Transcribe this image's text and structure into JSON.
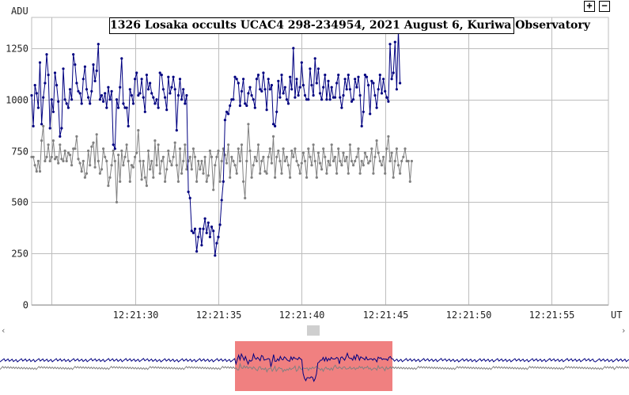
{
  "chart_data": {
    "type": "line",
    "title": "1326 Losaka occults UCAC4 298-234954, 2021 August 6, Kuriwa Observatory",
    "ylabel": "ADU",
    "xlabel": "UT",
    "ylim": [
      0,
      1400
    ],
    "xlim": [
      0,
      34.6
    ],
    "x_start_time": "12:21:25.0",
    "yticks": [
      {
        "value": 0,
        "label": "0"
      },
      {
        "value": 250,
        "label": "250"
      },
      {
        "value": 500,
        "label": "500"
      },
      {
        "value": 750,
        "label": "750"
      },
      {
        "value": 1000,
        "label": "1000"
      },
      {
        "value": 1250,
        "label": "1250"
      }
    ],
    "xticks": [
      {
        "value": 1.2,
        "label": ""
      },
      {
        "value": 6.2,
        "label": "12:21:30"
      },
      {
        "value": 11.2,
        "label": "12:21:35"
      },
      {
        "value": 16.2,
        "label": "12:21:40"
      },
      {
        "value": 21.2,
        "label": "12:21:45"
      },
      {
        "value": 26.2,
        "label": "12:21:50"
      },
      {
        "value": 31.2,
        "label": "12:21:55"
      }
    ],
    "grid": true,
    "series": [
      {
        "name": "",
        "color": "#000080",
        "x_step": 0.1,
        "values": [
          1020,
          870,
          1070,
          1030,
          960,
          1180,
          880,
          1010,
          1080,
          1220,
          1120,
          860,
          1000,
          940,
          1130,
          1070,
          990,
          820,
          860,
          1150,
          1000,
          980,
          960,
          1050,
          1000,
          1220,
          1170,
          1080,
          1040,
          1030,
          980,
          1100,
          1160,
          1050,
          1010,
          980,
          1040,
          1170,
          1090,
          1140,
          1270,
          1000,
          1020,
          990,
          1030,
          960,
          1060,
          1000,
          1040,
          780,
          760,
          1000,
          960,
          1060,
          1200,
          980,
          960,
          960,
          870,
          1050,
          1020,
          980,
          1100,
          1130,
          1020,
          1030,
          1100,
          1010,
          940,
          1120,
          1050,
          1080,
          1030,
          1010,
          980,
          1000,
          960,
          1130,
          1120,
          1050,
          1010,
          950,
          1110,
          1030,
          1060,
          1110,
          1050,
          850,
          1020,
          1100,
          1000,
          1050,
          980,
          1020,
          550,
          520,
          360,
          350,
          370,
          260,
          330,
          370,
          290,
          370,
          420,
          350,
          400,
          330,
          380,
          360,
          240,
          300,
          330,
          390,
          510,
          600,
          900,
          940,
          930,
          970,
          1000,
          1000,
          1110,
          1100,
          1080,
          970,
          1040,
          1100,
          980,
          970,
          1030,
          1060,
          1020,
          1000,
          960,
          1100,
          1120,
          1050,
          1040,
          1130,
          1050,
          950,
          1100,
          1050,
          1070,
          880,
          870,
          940,
          1090,
          1010,
          1120,
          1030,
          1060,
          1000,
          980,
          1110,
          1050,
          1250,
          1010,
          1100,
          1020,
          1060,
          1180,
          1070,
          1020,
          1000,
          1000,
          1150,
          1070,
          1020,
          1200,
          1080,
          1150,
          1030,
          1000,
          1060,
          1120,
          1000,
          1090,
          1000,
          1060,
          1010,
          1010,
          1080,
          1120,
          1010,
          960,
          1020,
          1100,
          1050,
          1120,
          1050,
          990,
          1000,
          1100,
          1060,
          1110,
          1020,
          870,
          940,
          1120,
          1110,
          1070,
          930,
          1090,
          1080,
          1020,
          960,
          1050,
          1120,
          1030,
          1100,
          1040,
          1010,
          990,
          1270,
          1100,
          1130,
          1280,
          1050,
          1340,
          1080
        ]
      },
      {
        "name": "",
        "color": "#808080",
        "x_step": 0.1,
        "values": [
          720,
          720,
          680,
          650,
          700,
          650,
          800,
          870,
          700,
          720,
          780,
          700,
          720,
          800,
          710,
          720,
          690,
          780,
          710,
          700,
          750,
          700,
          740,
          730,
          680,
          760,
          760,
          820,
          710,
          690,
          650,
          700,
          620,
          640,
          750,
          680,
          770,
          790,
          670,
          830,
          700,
          640,
          660,
          760,
          720,
          700,
          580,
          620,
          680,
          750,
          700,
          500,
          730,
          600,
          750,
          680,
          720,
          780,
          700,
          600,
          680,
          670,
          720,
          740,
          850,
          700,
          610,
          700,
          620,
          580,
          750,
          660,
          700,
          620,
          800,
          680,
          780,
          640,
          700,
          720,
          600,
          660,
          750,
          700,
          680,
          720,
          790,
          680,
          600,
          760,
          640,
          700,
          780,
          660,
          700,
          720,
          660,
          760,
          720,
          600,
          700,
          660,
          700,
          640,
          720,
          600,
          630,
          750,
          720,
          560,
          680,
          720,
          750,
          600,
          700,
          760,
          730,
          690,
          780,
          620,
          720,
          700,
          680,
          640,
          760,
          700,
          780,
          600,
          520,
          700,
          880,
          750,
          620,
          680,
          720,
          700,
          780,
          640,
          700,
          720,
          650,
          640,
          720,
          760,
          690,
          820,
          620,
          720,
          750,
          700,
          640,
          760,
          700,
          720,
          680,
          620,
          750,
          720,
          760,
          700,
          680,
          640,
          690,
          740,
          700,
          620,
          760,
          720,
          680,
          780,
          700,
          620,
          740,
          690,
          660,
          760,
          720,
          640,
          700,
          680,
          780,
          700,
          720,
          640,
          760,
          700,
          680,
          740,
          700,
          720,
          640,
          780,
          700,
          680,
          700,
          720,
          760,
          640,
          700,
          680,
          740,
          720,
          690,
          700,
          760,
          640,
          720,
          800,
          740,
          700,
          680,
          720,
          640,
          760,
          820,
          700,
          740,
          620,
          700,
          760,
          680,
          640,
          700,
          720,
          760,
          700,
          700,
          600,
          700
        ]
      }
    ],
    "navigator": {
      "window_start_time": "12:21:34.7",
      "window_end_time": "12:21:44.9"
    }
  }
}
